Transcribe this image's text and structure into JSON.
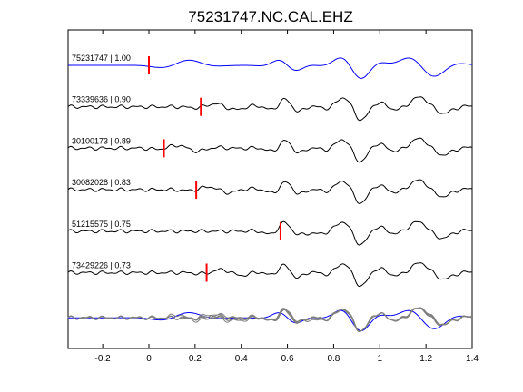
{
  "chart_data": {
    "type": "line",
    "title": "75231747.NC.CAL.EHZ",
    "xlabel": "",
    "ylabel": "",
    "xlim": [
      -0.35,
      1.4
    ],
    "xticks": [
      -0.2,
      0,
      0.2,
      0.4,
      0.6,
      0.8,
      1,
      1.2,
      1.4
    ],
    "xtick_labels": [
      "-0.2",
      "0",
      "0.2",
      "0.4",
      "0.6",
      "0.8",
      "1",
      "1.2",
      "1.4"
    ],
    "grid": false,
    "pick_color": "#ff0000",
    "reference_color": "#0000ff",
    "trace_color": "#000000",
    "stack_color": "#808080",
    "traces": [
      {
        "label": "75231747 | 1.00",
        "event_id": "75231747",
        "correlation": 1.0,
        "pick_time": 0.0,
        "color": "#0000ff",
        "amp": 15,
        "seed": 1
      },
      {
        "label": "73339636 | 0.90",
        "event_id": "73339636",
        "correlation": 0.9,
        "pick_time": 0.225,
        "color": "#000000",
        "amp": 15,
        "seed": 2
      },
      {
        "label": "30100173 | 0.89",
        "event_id": "30100173",
        "correlation": 0.89,
        "pick_time": 0.065,
        "color": "#000000",
        "amp": 15,
        "seed": 3
      },
      {
        "label": "30082028 | 0.83",
        "event_id": "30082028",
        "correlation": 0.83,
        "pick_time": 0.205,
        "color": "#000000",
        "amp": 15,
        "seed": 4
      },
      {
        "label": "51215575 | 0.75",
        "event_id": "51215575",
        "correlation": 0.75,
        "pick_time": 0.57,
        "color": "#000000",
        "amp": 15,
        "seed": 5
      },
      {
        "label": "73429226 | 0.73",
        "event_id": "73429226",
        "correlation": 0.73,
        "pick_time": 0.25,
        "color": "#000000",
        "amp": 15,
        "seed": 6
      }
    ],
    "stack_overlay": true
  }
}
